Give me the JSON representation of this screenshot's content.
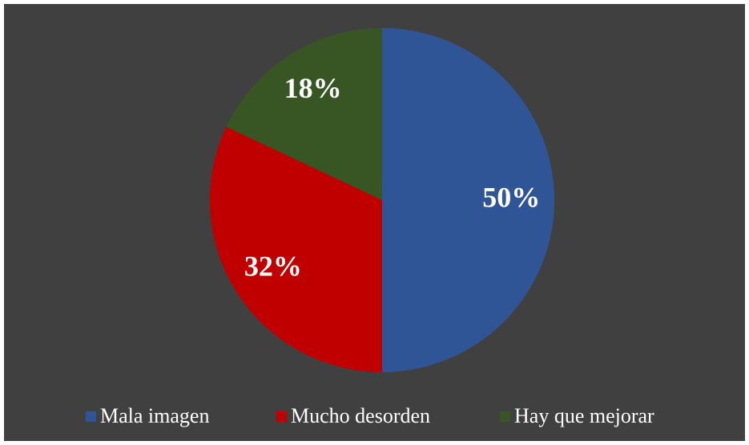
{
  "chart_data": {
    "type": "pie",
    "categories": [
      "Mala imagen",
      "Mucho desorden",
      "Hay que mejorar"
    ],
    "values": [
      50,
      32,
      18
    ],
    "value_labels": [
      "50%",
      "32%",
      "18%"
    ],
    "colors": [
      "#2f5597",
      "#c00000",
      "#375623"
    ],
    "legend": "bottom"
  }
}
